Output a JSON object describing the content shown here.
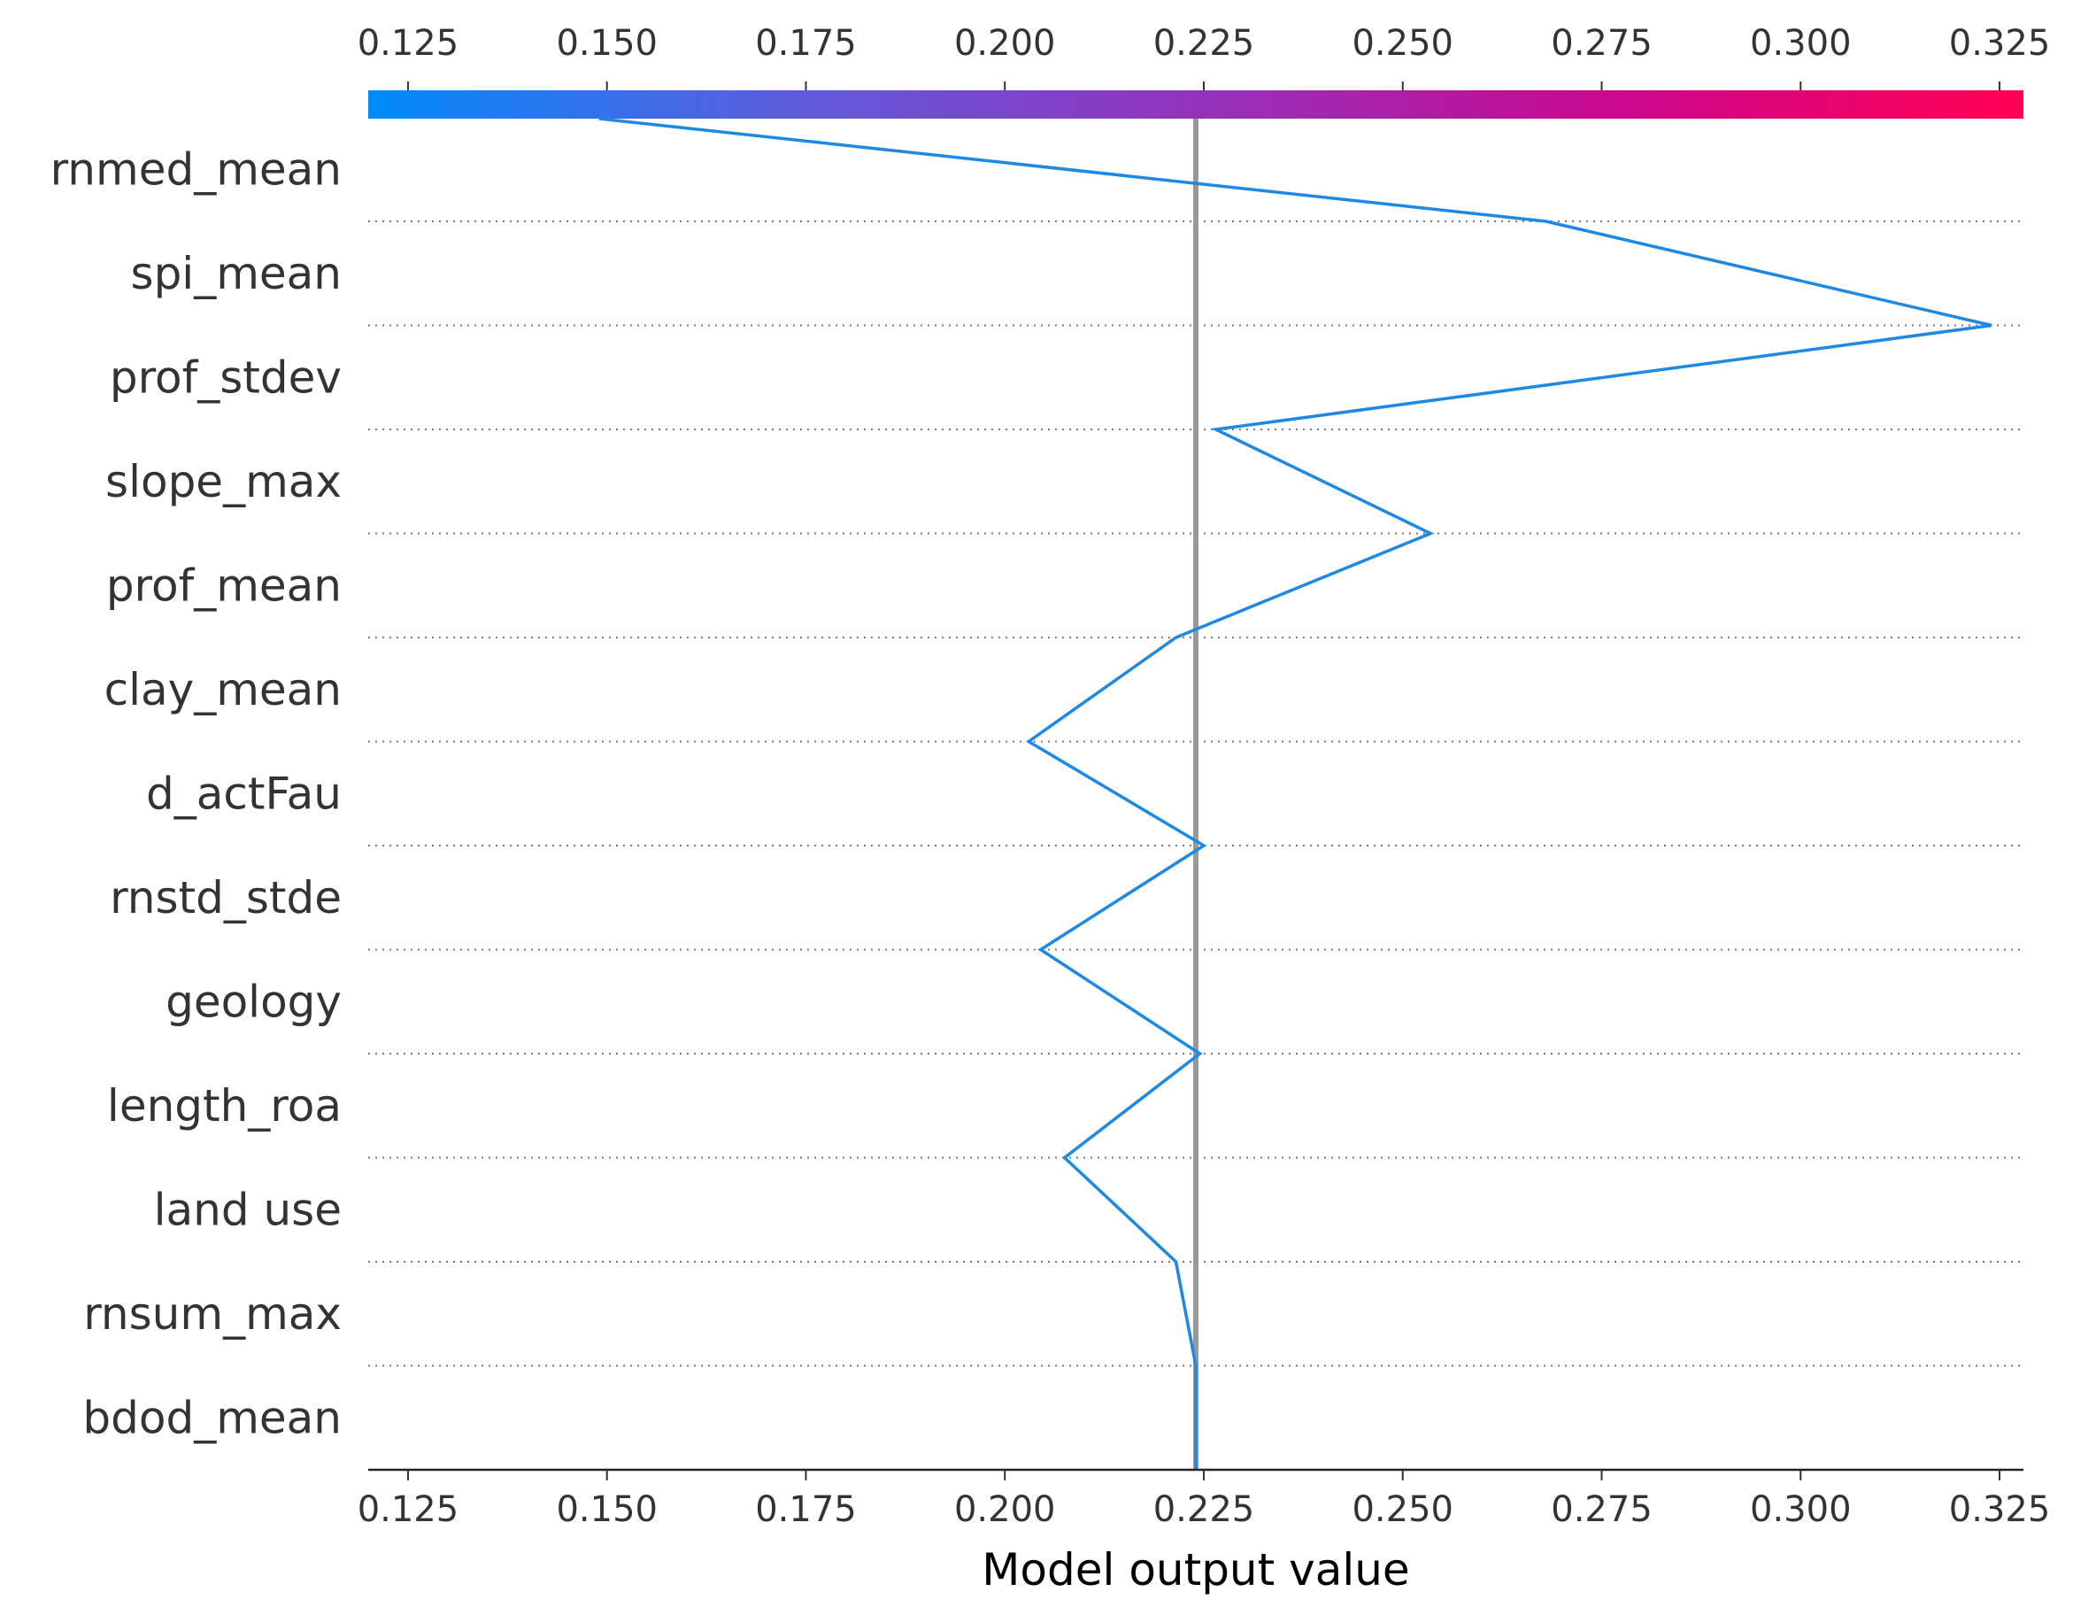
{
  "chart_data": {
    "type": "line",
    "chart_kind": "shap-decision-plot",
    "xlabel": "Model output value",
    "xlim": [
      0.12,
      0.328
    ],
    "xticks": [
      0.125,
      0.15,
      0.175,
      0.2,
      0.225,
      0.25,
      0.275,
      0.3,
      0.325
    ],
    "xtick_labels": [
      "0.125",
      "0.150",
      "0.175",
      "0.200",
      "0.225",
      "0.250",
      "0.275",
      "0.300",
      "0.325"
    ],
    "base_value": 0.224,
    "features": [
      "rnmed_mean",
      "spi_mean",
      "prof_stdev",
      "slope_max",
      "prof_mean",
      "clay_mean",
      "d_actFau",
      "rnstd_stde",
      "geology",
      "length_roa",
      "land use",
      "rnsum_max",
      "bdod_mean"
    ],
    "path_values": [
      0.149,
      0.268,
      0.324,
      0.2265,
      0.2535,
      0.2215,
      0.203,
      0.225,
      0.2045,
      0.2245,
      0.2075,
      0.2215,
      0.224
    ],
    "grid": "dotted horizontal separators between feature rows",
    "colorbar": {
      "position": "top",
      "colors": [
        "#008bfb",
        "#5c5ddc",
        "#9333bc",
        "#c9088f",
        "#ff0052"
      ]
    },
    "line_color": "#1e88e5",
    "base_line_color": "#999999"
  }
}
